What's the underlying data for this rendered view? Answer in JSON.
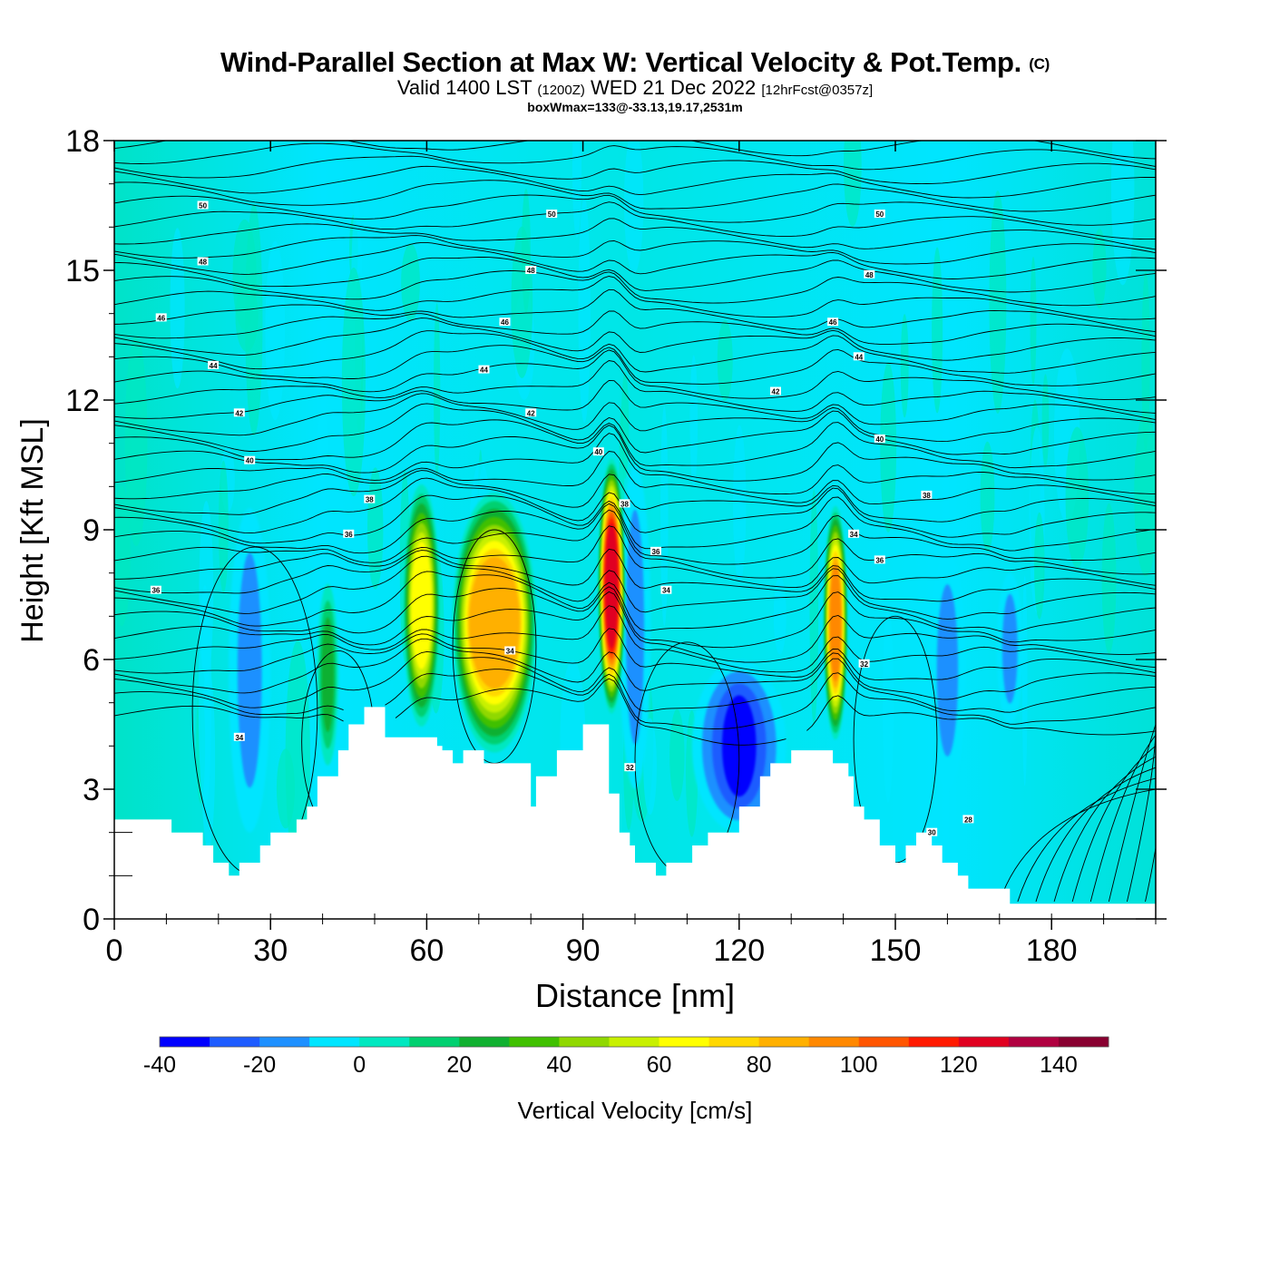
{
  "header": {
    "title": "Wind-Parallel Section at Max W: Vertical Velocity & Pot.Temp.",
    "copyright": "(C)",
    "valid_main": "Valid 1400 LST",
    "valid_utc": "(1200Z)",
    "valid_date": "WED 21 Dec 2022",
    "forecast": "[12hrFcst@0357z]",
    "box_info": "boxWmax=133@-33.13,19.17,2531m"
  },
  "chart_data": {
    "type": "heatmap",
    "title": "Wind-Parallel Section at Max W: Vertical Velocity & Pot.Temp.",
    "xlabel": "Distance [nm]",
    "ylabel": "Height [Kft MSL]",
    "xlim": [
      0,
      200
    ],
    "ylim": [
      0,
      18
    ],
    "x_ticks": [
      "0",
      "30",
      "60",
      "90",
      "120",
      "150",
      "180"
    ],
    "y_ticks": [
      "0",
      "3",
      "6",
      "9",
      "12",
      "15",
      "18"
    ],
    "colorbar": {
      "label": "Vertical Velocity [cm/s]",
      "bounds": [
        -40,
        150
      ],
      "step": 10,
      "tick_labels": [
        "-40",
        "-20",
        "0",
        "20",
        "40",
        "60",
        "80",
        "100",
        "120",
        "140"
      ],
      "colors": [
        "#0000ff",
        "#1e5cff",
        "#1e90ff",
        "#00e5ff",
        "#00e8c0",
        "#00d070",
        "#10b030",
        "#40c000",
        "#90d800",
        "#c8f000",
        "#ffff00",
        "#ffd800",
        "#ffb000",
        "#ff8800",
        "#ff5500",
        "#ff1a00",
        "#e00020",
        "#b00040",
        "#880030"
      ]
    },
    "terrain_kft": [
      [
        0,
        2.3
      ],
      [
        11,
        2.3
      ],
      [
        11,
        2.0
      ],
      [
        17,
        2.0
      ],
      [
        17,
        1.7
      ],
      [
        19,
        1.7
      ],
      [
        19,
        1.3
      ],
      [
        22,
        1.3
      ],
      [
        22,
        1.0
      ],
      [
        24,
        1.0
      ],
      [
        24,
        1.3
      ],
      [
        28,
        1.3
      ],
      [
        28,
        1.7
      ],
      [
        30,
        1.7
      ],
      [
        30,
        2.0
      ],
      [
        35,
        2.0
      ],
      [
        35,
        2.3
      ],
      [
        37,
        2.3
      ],
      [
        37,
        2.6
      ],
      [
        39,
        2.6
      ],
      [
        39,
        3.3
      ],
      [
        43,
        3.3
      ],
      [
        43,
        3.9
      ],
      [
        45,
        3.9
      ],
      [
        45,
        4.5
      ],
      [
        48,
        4.5
      ],
      [
        48,
        4.9
      ],
      [
        52,
        4.9
      ],
      [
        52,
        4.2
      ],
      [
        62,
        4.2
      ],
      [
        62,
        4.0
      ],
      [
        63,
        4.0
      ],
      [
        63,
        3.9
      ],
      [
        65,
        3.9
      ],
      [
        65,
        3.6
      ],
      [
        67,
        3.6
      ],
      [
        67,
        3.9
      ],
      [
        71,
        3.9
      ],
      [
        71,
        3.6
      ],
      [
        80,
        3.6
      ],
      [
        80,
        2.6
      ],
      [
        81,
        2.6
      ],
      [
        81,
        3.3
      ],
      [
        85,
        3.3
      ],
      [
        85,
        3.9
      ],
      [
        90,
        3.9
      ],
      [
        90,
        4.5
      ],
      [
        95,
        4.5
      ],
      [
        95,
        2.9
      ],
      [
        97,
        2.9
      ],
      [
        97,
        2.0
      ],
      [
        99,
        2.0
      ],
      [
        99,
        1.7
      ],
      [
        100,
        1.7
      ],
      [
        100,
        1.3
      ],
      [
        104,
        1.3
      ],
      [
        104,
        1.0
      ],
      [
        106,
        1.0
      ],
      [
        106,
        1.3
      ],
      [
        111,
        1.3
      ],
      [
        111,
        1.7
      ],
      [
        114,
        1.7
      ],
      [
        114,
        2.0
      ],
      [
        120,
        2.0
      ],
      [
        120,
        2.6
      ],
      [
        124,
        2.6
      ],
      [
        124,
        3.3
      ],
      [
        126,
        3.3
      ],
      [
        126,
        3.6
      ],
      [
        130,
        3.6
      ],
      [
        130,
        3.9
      ],
      [
        138,
        3.9
      ],
      [
        138,
        3.6
      ],
      [
        141,
        3.6
      ],
      [
        141,
        3.3
      ],
      [
        142,
        3.3
      ],
      [
        142,
        2.6
      ],
      [
        144,
        2.6
      ],
      [
        144,
        2.3
      ],
      [
        147,
        2.3
      ],
      [
        147,
        1.7
      ],
      [
        150,
        1.7
      ],
      [
        150,
        1.3
      ],
      [
        152,
        1.3
      ],
      [
        152,
        1.7
      ],
      [
        154,
        1.7
      ],
      [
        154,
        2.0
      ],
      [
        157,
        2.0
      ],
      [
        157,
        1.7
      ],
      [
        159,
        1.7
      ],
      [
        159,
        1.3
      ],
      [
        162,
        1.3
      ],
      [
        162,
        1.0
      ],
      [
        164,
        1.0
      ],
      [
        164,
        0.7
      ],
      [
        172,
        0.7
      ],
      [
        172,
        0.35
      ],
      [
        200,
        0.35
      ]
    ],
    "updrafts": [
      {
        "x": 59,
        "zbot": 4.2,
        "ztop": 9.8,
        "width_nm": 5,
        "w_max": 70
      },
      {
        "x": 73,
        "zbot": 3.6,
        "ztop": 9.6,
        "width_nm": 14,
        "w_max": 90
      },
      {
        "x": 95.5,
        "zbot": 4.5,
        "ztop": 10.4,
        "width_nm": 3,
        "w_max": 133
      },
      {
        "x": 138.5,
        "zbot": 3.9,
        "ztop": 9.3,
        "width_nm": 2.5,
        "w_max": 105
      },
      {
        "x": 41,
        "zbot": 3.3,
        "ztop": 7.5,
        "width_nm": 2,
        "w_max": 30
      }
    ],
    "downdrafts": [
      {
        "x": 120,
        "zbot": 2.0,
        "ztop": 6.0,
        "width_nm": 16,
        "w_min": -45
      },
      {
        "x": 26,
        "zbot": 2.0,
        "ztop": 9.5,
        "width_nm": 6,
        "w_min": -25
      },
      {
        "x": 160,
        "zbot": 3.0,
        "ztop": 8.5,
        "width_nm": 5,
        "w_min": -22
      },
      {
        "x": 172,
        "zbot": 4.5,
        "ztop": 8.0,
        "width_nm": 3,
        "w_min": -20
      },
      {
        "x": 100,
        "zbot": 3.0,
        "ztop": 10.5,
        "width_nm": 4,
        "w_min": -25
      }
    ],
    "theta_labels": [
      {
        "text": "50",
        "x": 17,
        "z": 16.5
      },
      {
        "text": "50",
        "x": 84,
        "z": 16.3
      },
      {
        "text": "50",
        "x": 147,
        "z": 16.3
      },
      {
        "text": "48",
        "x": 17,
        "z": 15.2
      },
      {
        "text": "48",
        "x": 80,
        "z": 15.0
      },
      {
        "text": "48",
        "x": 145,
        "z": 14.9
      },
      {
        "text": "46",
        "x": 9,
        "z": 13.9
      },
      {
        "text": "46",
        "x": 75,
        "z": 13.8
      },
      {
        "text": "46",
        "x": 138,
        "z": 13.8
      },
      {
        "text": "44",
        "x": 19,
        "z": 12.8
      },
      {
        "text": "44",
        "x": 71,
        "z": 12.7
      },
      {
        "text": "44",
        "x": 143,
        "z": 13.0
      },
      {
        "text": "42",
        "x": 24,
        "z": 11.7
      },
      {
        "text": "42",
        "x": 80,
        "z": 11.7
      },
      {
        "text": "42",
        "x": 127,
        "z": 12.2
      },
      {
        "text": "40",
        "x": 26,
        "z": 10.6
      },
      {
        "text": "40",
        "x": 93,
        "z": 10.8
      },
      {
        "text": "40",
        "x": 147,
        "z": 11.1
      },
      {
        "text": "38",
        "x": 49,
        "z": 9.7
      },
      {
        "text": "38",
        "x": 98,
        "z": 9.6
      },
      {
        "text": "38",
        "x": 156,
        "z": 9.8
      },
      {
        "text": "36",
        "x": 45,
        "z": 8.9
      },
      {
        "text": "36",
        "x": 104,
        "z": 8.5
      },
      {
        "text": "36",
        "x": 147,
        "z": 8.3
      },
      {
        "text": "36",
        "x": 8,
        "z": 7.6
      },
      {
        "text": "34",
        "x": 106,
        "z": 7.6
      },
      {
        "text": "34",
        "x": 142,
        "z": 8.9
      },
      {
        "text": "34",
        "x": 76,
        "z": 6.2
      },
      {
        "text": "34",
        "x": 24,
        "z": 4.2
      },
      {
        "text": "32",
        "x": 99,
        "z": 3.5
      },
      {
        "text": "32",
        "x": 144,
        "z": 5.9
      },
      {
        "text": "30",
        "x": 157,
        "z": 2.0
      },
      {
        "text": "28",
        "x": 164,
        "z": 2.3
      }
    ]
  }
}
